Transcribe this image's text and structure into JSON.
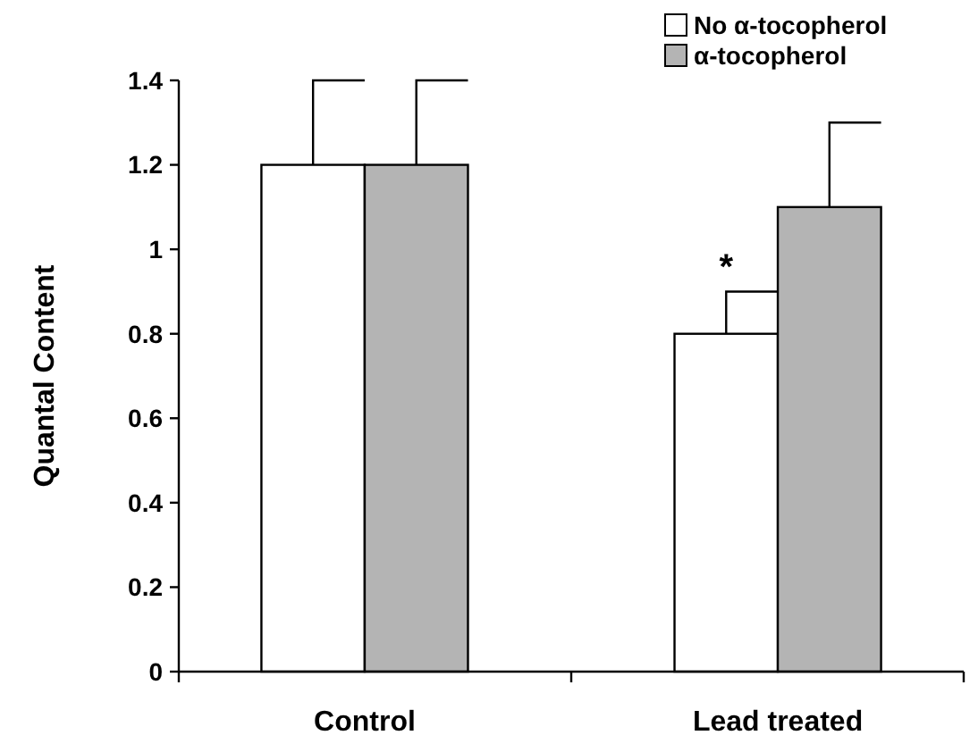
{
  "chart_data": {
    "type": "bar",
    "ylabel": "Quantal Content",
    "categories": [
      "Control",
      "Lead treated"
    ],
    "series": [
      {
        "name": "No α-tocopherol",
        "color": "#ffffff",
        "values": [
          1.2,
          0.8
        ],
        "errors": [
          [
            1.2,
            1.4
          ],
          [
            0.8,
            0.9
          ]
        ]
      },
      {
        "name": "α-tocopherol",
        "color": "#b4b4b4",
        "values": [
          1.2,
          1.1
        ],
        "errors": [
          [
            1.2,
            1.4
          ],
          [
            1.1,
            1.3
          ]
        ]
      }
    ],
    "ylim": [
      0,
      1.4
    ],
    "yticks": [
      0,
      0.2,
      0.4,
      0.6,
      0.8,
      1,
      1.2,
      1.4
    ],
    "grid": false,
    "legend": "top right",
    "annotations": [
      {
        "text": "*",
        "x": "Lead treated",
        "y": 0.93
      }
    ]
  }
}
